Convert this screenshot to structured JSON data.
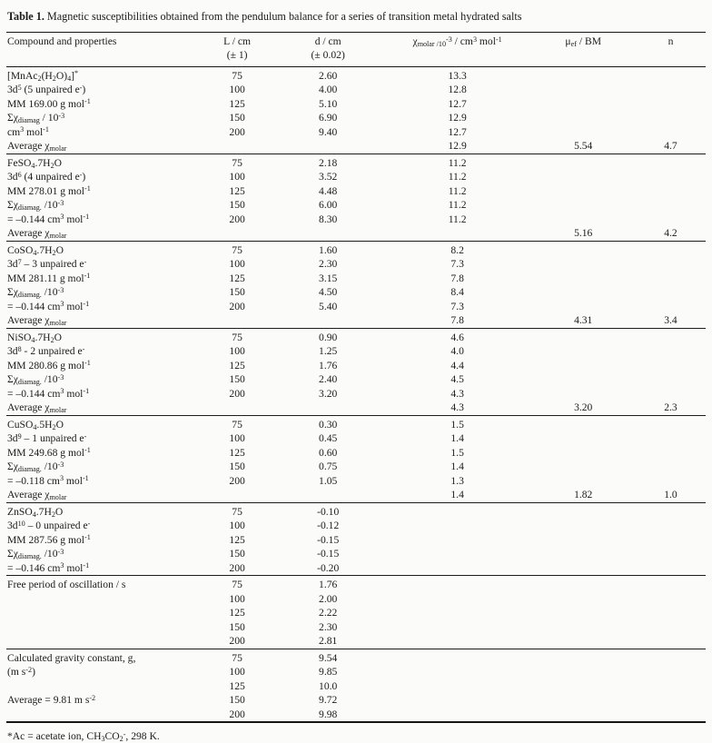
{
  "page": {
    "title_label": "Table 1.",
    "title_text": " Magnetic susceptibilities obtained from the pendulum balance for a series of transition metal hydrated salts",
    "footnote": "*Ac = acetate ion, CH<sub>3</sub>CO<sub>2</sub><sup>-</sup>, 298 K."
  },
  "columns": [
    {
      "line1": "Compound and properties",
      "line2": ""
    },
    {
      "line1": "L / cm",
      "line2": "(± 1)"
    },
    {
      "line1": "d / cm",
      "line2": "(± 0.02)"
    },
    {
      "line1": "χ<sub>molar /10</sub><sup>-3</sup> / cm<sup>3</sup> mol<sup>-1</sup>",
      "line2": ""
    },
    {
      "line1": "μ<sub>ef</sub> / BM",
      "line2": ""
    },
    {
      "line1": "n",
      "line2": ""
    }
  ],
  "sections": [
    {
      "rows": [
        [
          "[MnAc<sub>2</sub>(H<sub>2</sub>O)<sub>4</sub>]<sup>*</sup>",
          "75",
          "2.60",
          "13.3",
          "",
          ""
        ],
        [
          "3d<sup>5</sup> (5 unpaired e<sup>-</sup>)",
          "100",
          "4.00",
          "12.8",
          "",
          ""
        ],
        [
          "MM 169.00 g mol<sup>-1</sup>",
          "125",
          "5.10",
          "12.7",
          "",
          ""
        ],
        [
          "Σχ<sub>diamag</sub> / 10<sup>-3</sup>",
          "150",
          "6.90",
          "12.9",
          "",
          ""
        ],
        [
          "cm<sup>3</sup> mol<sup>-1</sup>",
          "200",
          "9.40",
          "12.7",
          "",
          ""
        ],
        [
          "Average χ<sub>molar</sub>",
          "",
          "",
          "12.9",
          "5.54",
          "4.7"
        ]
      ]
    },
    {
      "rows": [
        [
          "FeSO<sub>4</sub>.7H<sub>2</sub>O",
          "75",
          "2.18",
          "11.2",
          "",
          ""
        ],
        [
          "3d<sup>6</sup> (4 unpaired e<sup>-</sup>)",
          "100",
          "3.52",
          "11.2",
          "",
          ""
        ],
        [
          "MM 278.01 g mol<sup>-1</sup>",
          "125",
          "4.48",
          "11.2",
          "",
          ""
        ],
        [
          "Σχ<sub>diamag.</sub> /10<sup>-3</sup>",
          "150",
          "6.00",
          "11.2",
          "",
          ""
        ],
        [
          "= –0.144 cm<sup>3</sup> mol<sup>-1</sup>",
          "200",
          "8.30",
          "11.2",
          "",
          ""
        ],
        [
          "Average χ<sub>molar</sub>",
          "",
          "",
          "",
          "5.16",
          "4.2"
        ]
      ]
    },
    {
      "rows": [
        [
          "CoSO<sub>4</sub>.7H<sub>2</sub>O",
          "75",
          "1.60",
          "8.2",
          "",
          ""
        ],
        [
          "3d<sup>7</sup> – 3 unpaired e<sup>-</sup>",
          "100",
          "2.30",
          "7.3",
          "",
          ""
        ],
        [
          "MM 281.11 g mol<sup>-1</sup>",
          "125",
          "3.15",
          "7.8",
          "",
          ""
        ],
        [
          "Σχ<sub>diamag.</sub> /10<sup>-3</sup>",
          "150",
          "4.50",
          "8.4",
          "",
          ""
        ],
        [
          "= –0.144 cm<sup>3</sup> mol<sup>-1</sup>",
          "200",
          "5.40",
          "7.3",
          "",
          ""
        ],
        [
          "Average χ<sub>molar</sub>",
          "",
          "",
          "7.8",
          "4.31",
          "3.4"
        ]
      ]
    },
    {
      "rows": [
        [
          "NiSO<sub>4</sub>.7H<sub>2</sub>O",
          "75",
          "0.90",
          "4.6",
          "",
          ""
        ],
        [
          "3d<sup>8</sup> - 2 unpaired e<sup>-</sup>",
          "100",
          "1.25",
          "4.0",
          "",
          ""
        ],
        [
          "MM 280.86 g mol<sup>-1</sup>",
          "125",
          "1.76",
          "4.4",
          "",
          ""
        ],
        [
          "Σχ<sub>diamag.</sub> /10<sup>-3</sup>",
          "150",
          "2.40",
          "4.5",
          "",
          ""
        ],
        [
          "= –0.144 cm<sup>3</sup> mol<sup>-1</sup>",
          "200",
          "3.20",
          "4.3",
          "",
          ""
        ],
        [
          "Average χ<sub>molar</sub>",
          "",
          "",
          "4.3",
          "3.20",
          "2.3"
        ]
      ]
    },
    {
      "rows": [
        [
          "CuSO<sub>4</sub>.5H<sub>2</sub>O",
          "75",
          "0.30",
          "1.5",
          "",
          ""
        ],
        [
          "3d<sup>9</sup> – 1 unpaired e<sup>-</sup>",
          "100",
          "0.45",
          "1.4",
          "",
          ""
        ],
        [
          "MM 249.68 g mol<sup>-1</sup>",
          "125",
          "0.60",
          "1.5",
          "",
          ""
        ],
        [
          "Σχ<sub>diamag.</sub> /10<sup>-3</sup>",
          "150",
          "0.75",
          "1.4",
          "",
          ""
        ],
        [
          "= –0.118 cm<sup>3</sup> mol<sup>-1</sup>",
          "200",
          "1.05",
          "1.3",
          "",
          ""
        ],
        [
          "Average χ<sub>molar</sub>",
          "",
          "",
          "1.4",
          "1.82",
          "1.0"
        ]
      ]
    },
    {
      "rows": [
        [
          "ZnSO<sub>4</sub>.7H<sub>2</sub>O",
          "75",
          "-0.10",
          "",
          "",
          ""
        ],
        [
          "3d<sup>10</sup> – 0 unpaired e<sup>-</sup>",
          "100",
          "-0.12",
          "",
          "",
          ""
        ],
        [
          "MM 287.56 g mol<sup>-1</sup>",
          "125",
          "-0.15",
          "",
          "",
          ""
        ],
        [
          "Σχ<sub>diamag.</sub> /10<sup>-3</sup>",
          "150",
          "-0.15",
          "",
          "",
          ""
        ],
        [
          "= –0.146 cm<sup>3</sup> mol<sup>-1</sup>",
          "200",
          "-0.20",
          "",
          "",
          ""
        ]
      ]
    },
    {
      "rows": [
        [
          "Free period of oscillation / s",
          "75",
          "1.76",
          "",
          "",
          ""
        ],
        [
          "",
          "100",
          "2.00",
          "",
          "",
          ""
        ],
        [
          "",
          "125",
          "2.22",
          "",
          "",
          ""
        ],
        [
          "",
          "150",
          "2.30",
          "",
          "",
          ""
        ],
        [
          "",
          "200",
          "2.81",
          "",
          "",
          ""
        ]
      ]
    },
    {
      "rows": [
        [
          "Calculated gravity constant, g,",
          "75",
          "9.54",
          "",
          "",
          ""
        ],
        [
          "(m s<sup>-2</sup>)",
          "100",
          "9.85",
          "",
          "",
          ""
        ],
        [
          "",
          "125",
          "10.0",
          "",
          "",
          ""
        ],
        [
          "Average = 9.81 m s<sup>-2</sup>",
          "150",
          "9.72",
          "",
          "",
          ""
        ],
        [
          "",
          "200",
          "9.98",
          "",
          "",
          ""
        ]
      ]
    }
  ]
}
